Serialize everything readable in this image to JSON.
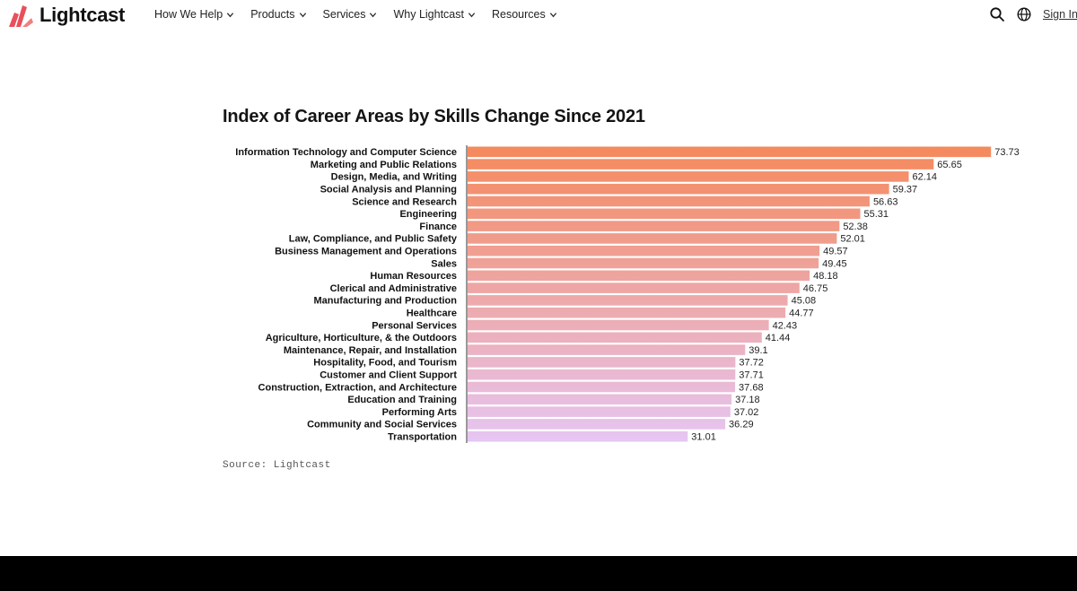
{
  "nav": {
    "brand": "Lightcast",
    "menu": [
      {
        "label": "How We Help"
      },
      {
        "label": "Products"
      },
      {
        "label": "Services"
      },
      {
        "label": "Why Lightcast"
      },
      {
        "label": "Resources"
      }
    ],
    "search_icon": "search-icon",
    "language_icon": "globe-icon",
    "sign_in": "Sign In"
  },
  "source": "Source: Lightcast",
  "chart_data": {
    "type": "bar",
    "orientation": "horizontal",
    "title": "Index of Career Areas by Skills Change Since 2021",
    "xlabel": "",
    "ylabel": "",
    "xlim": [
      0,
      80
    ],
    "grid": false,
    "legend": "none",
    "colors": {
      "top": "#f5895c",
      "bottom": "#e6c6f3"
    },
    "categories": [
      "Information Technology and Computer Science",
      "Marketing and Public Relations",
      "Design, Media, and Writing",
      "Social Analysis and Planning",
      "Science and Research",
      "Engineering",
      "Finance",
      "Law, Compliance, and Public Safety",
      "Business Management and Operations",
      "Sales",
      "Human Resources",
      "Clerical and Administrative",
      "Manufacturing and Production",
      "Healthcare",
      "Personal Services",
      "Agriculture, Horticulture, & the Outdoors",
      "Maintenance, Repair, and Installation",
      "Hospitality, Food, and Tourism",
      "Customer and Client Support",
      "Construction, Extraction, and Architecture",
      "Education and Training",
      "Performing Arts",
      "Community and Social Services",
      "Transportation"
    ],
    "values": [
      73.73,
      65.65,
      62.14,
      59.37,
      56.63,
      55.31,
      52.38,
      52.01,
      49.57,
      49.45,
      48.18,
      46.75,
      45.08,
      44.77,
      42.43,
      41.44,
      39.1,
      37.72,
      37.71,
      37.68,
      37.18,
      37.02,
      36.29,
      31.01
    ],
    "value_labels": [
      "73.73",
      "65.65",
      "62.14",
      "59.37",
      "56.63",
      "55.31",
      "52.38",
      "52.01",
      "49.57",
      "49.45",
      "48.18",
      "46.75",
      "45.08",
      "44.77",
      "42.43",
      "41.44",
      "39.1",
      "37.72",
      "37.71",
      "37.68",
      "37.18",
      "37.02",
      "36.29",
      "31.01"
    ]
  }
}
